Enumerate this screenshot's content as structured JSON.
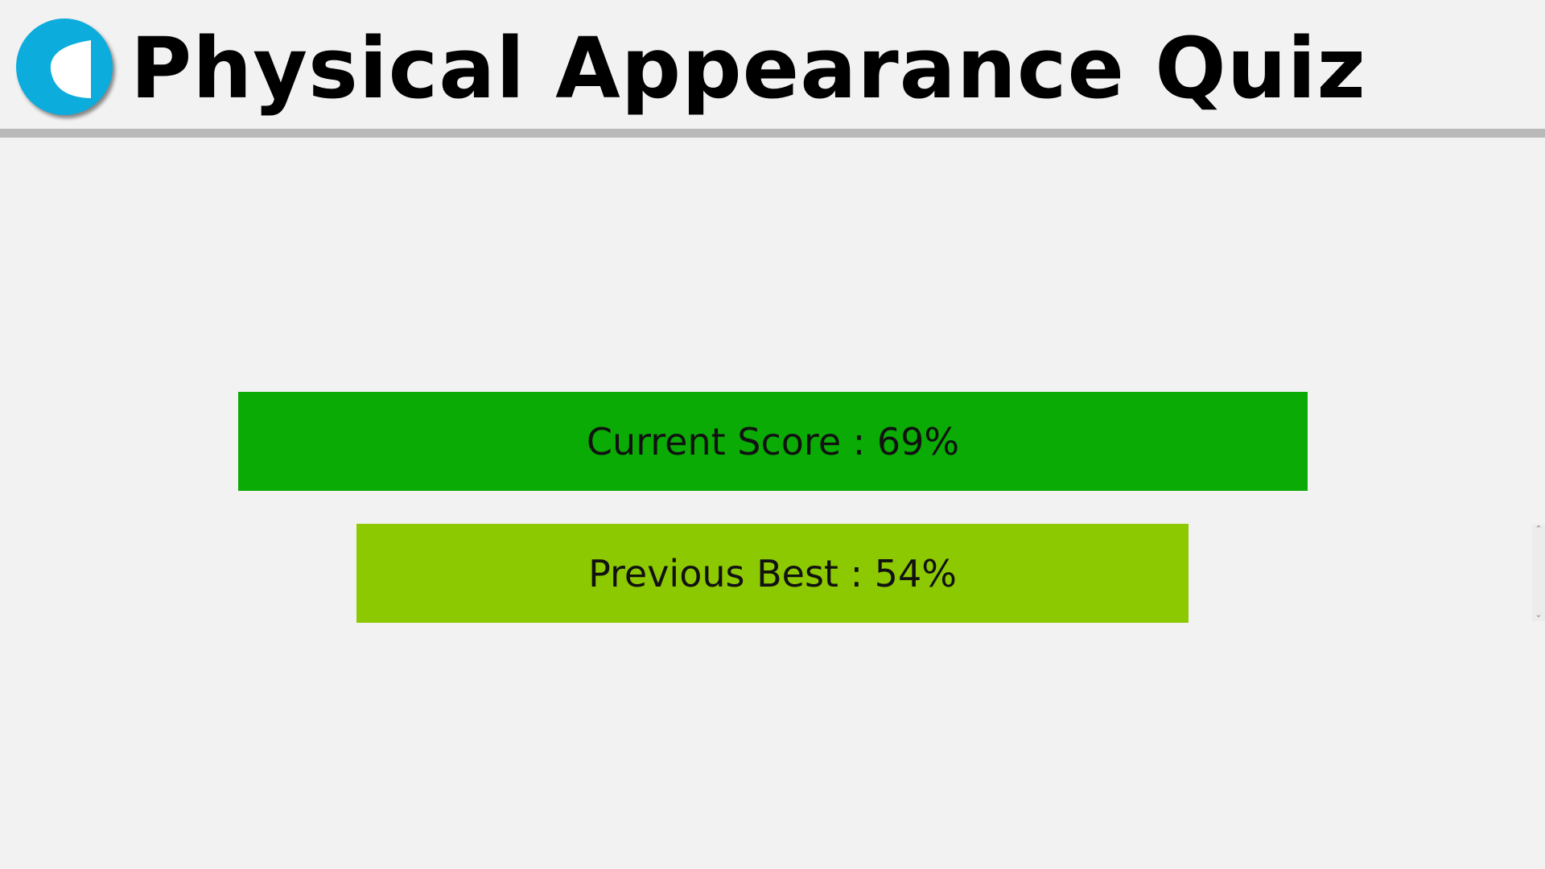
{
  "header": {
    "title": "Physical Appearance Quiz",
    "logo_icon": "half-moon-logo-icon",
    "logo_color": "#0cacdc"
  },
  "results": {
    "current_score": "Current Score : 69%",
    "current_score_value": 69,
    "current_color": "#0aab04",
    "previous_best": "Previous Best : 54%",
    "previous_best_value": 54,
    "best_color": "#8dc900"
  },
  "scrollbar": {
    "up_icon": "chevron-up-icon",
    "down_icon": "chevron-down-icon"
  }
}
